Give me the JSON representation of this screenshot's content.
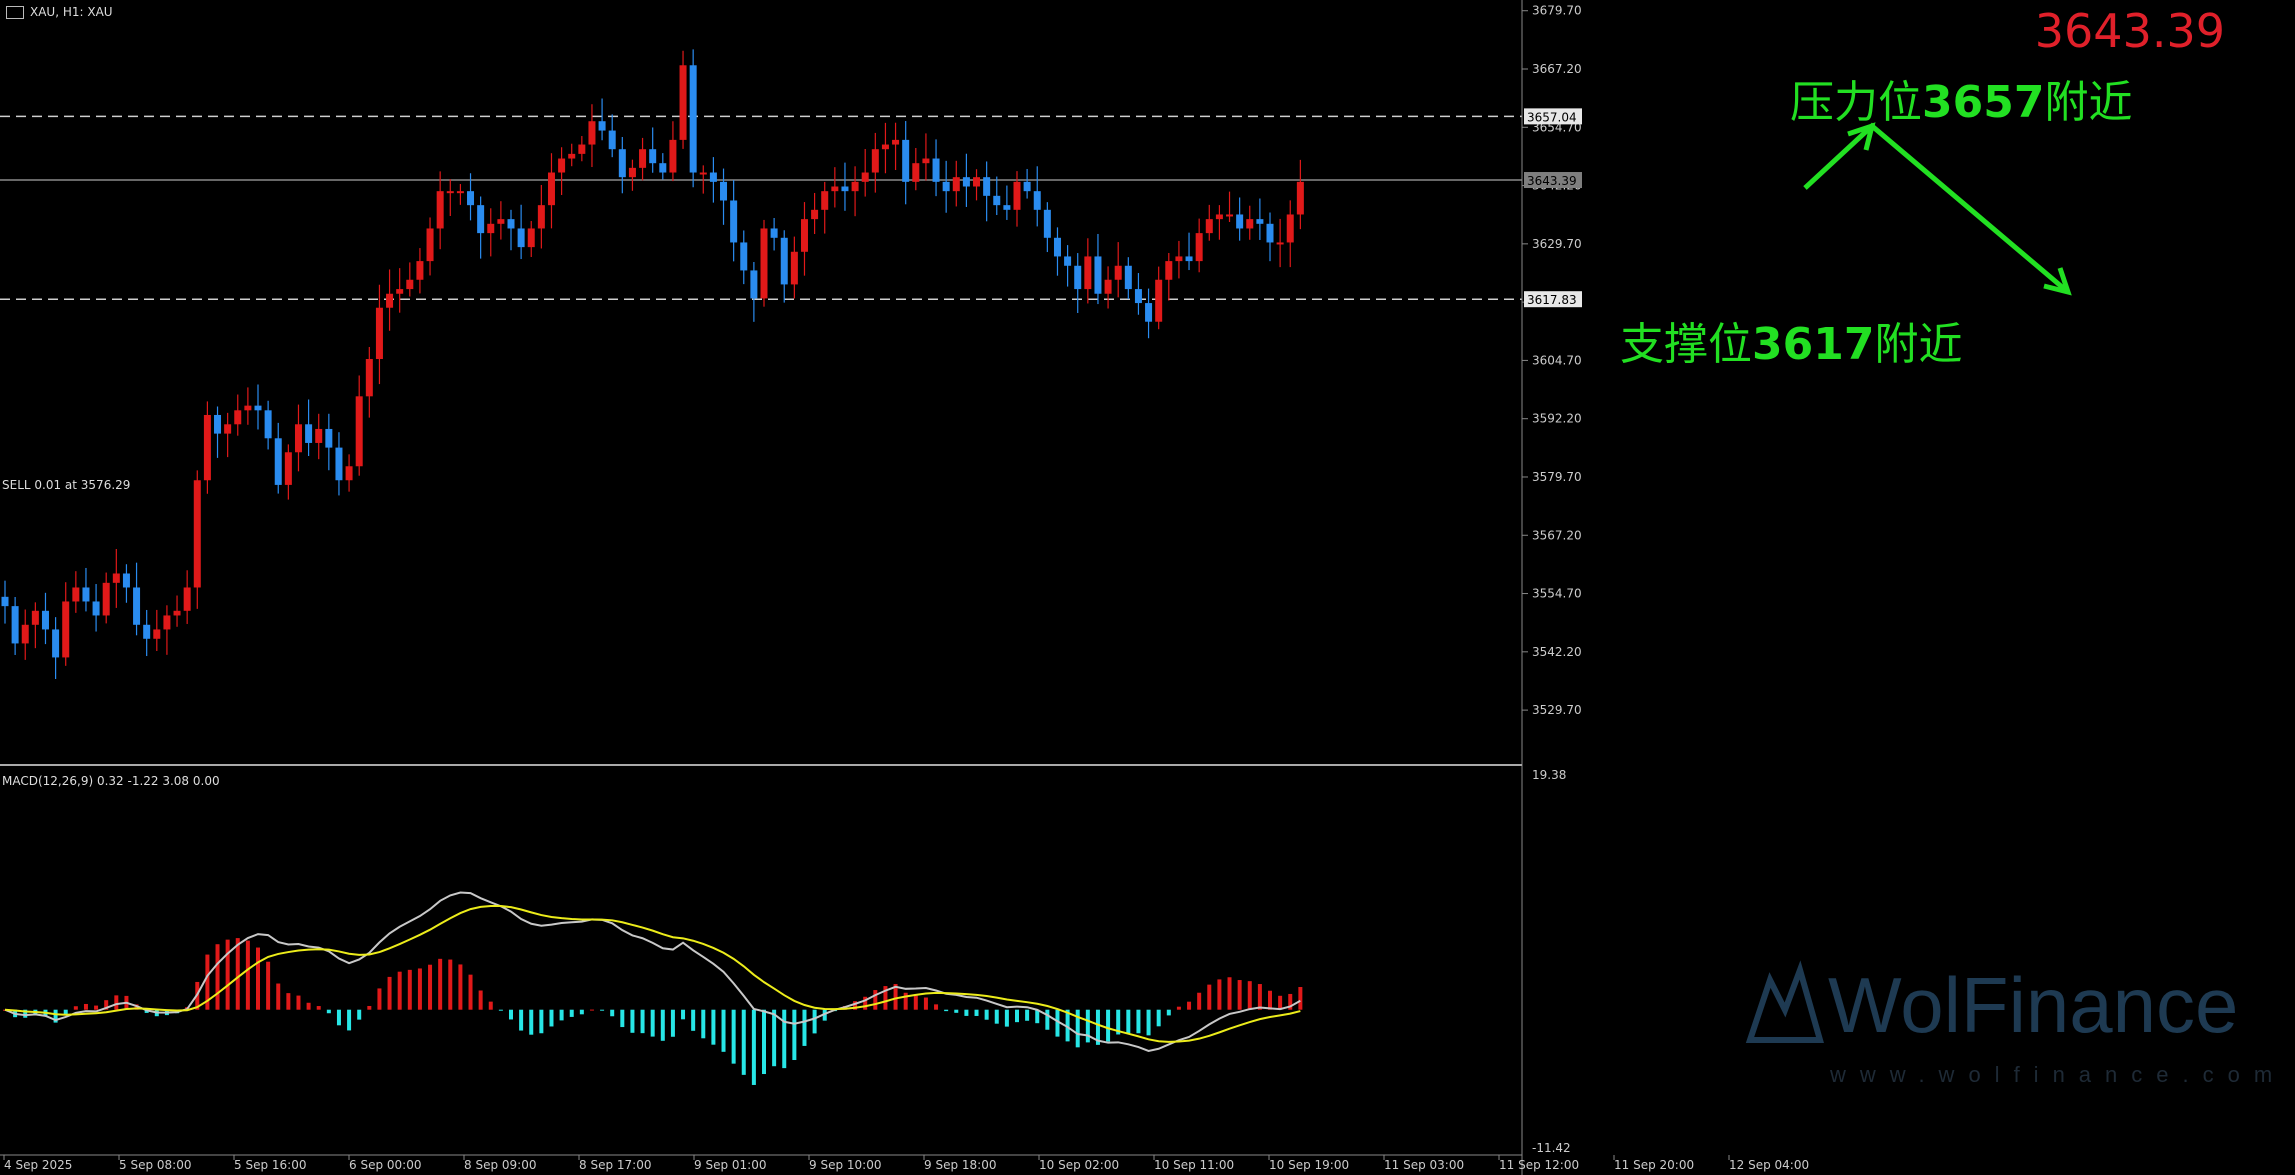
{
  "header": {
    "symbol_text": "XAU, H1: XAU"
  },
  "current_price": "3643.39",
  "order_label": "SELL 0.01 at 3576.29",
  "macd_label": "MACD(12,26,9) 0.32 -1.22 3.08 0.00",
  "annotations": {
    "resistance_prefix": "压力位",
    "resistance_value": "3657",
    "resistance_suffix": "附近",
    "support_prefix": "支撑位",
    "support_value": "3617",
    "support_suffix": "附近"
  },
  "watermark": {
    "name": "WolFinance",
    "url": "www.wolfinance.com"
  },
  "colors": {
    "background": "#000000",
    "bull": "#e11919",
    "bear": "#2a8cf0",
    "macd_up": "#e11919",
    "macd_down": "#27e6e6",
    "macd_line": "#c8c8c8",
    "signal_line": "#ecec1a",
    "annotation": "#22e022",
    "price_label": "#e0202a"
  },
  "chart_data": [
    {
      "type": "candlestick",
      "symbol": "XAU",
      "timeframe": "H1",
      "ylim": [
        3519.0,
        3682.0
      ],
      "y_ticks": [
        "3679.70",
        "3667.20",
        "3654.70",
        "3642.20",
        "3629.70",
        "3617.20",
        "3604.70",
        "3592.20",
        "3579.70",
        "3567.20",
        "3554.70",
        "3542.20",
        "3529.70"
      ],
      "x_tick_labels": [
        "4 Sep 2025",
        "5 Sep 08:00",
        "5 Sep 16:00",
        "6 Sep 00:00",
        "8 Sep 09:00",
        "8 Sep 17:00",
        "9 Sep 01:00",
        "9 Sep 10:00",
        "9 Sep 18:00",
        "10 Sep 02:00",
        "10 Sep 11:00",
        "10 Sep 19:00",
        "11 Sep 03:00",
        "11 Sep 12:00",
        "11 Sep 20:00",
        "12 Sep 04:00"
      ],
      "horizontal_lines": [
        {
          "label": "3657.04",
          "value": 3657.04,
          "style": "dashed"
        },
        {
          "label": "3643.39",
          "value": 3643.39,
          "style": "solid"
        },
        {
          "label": "3617.83",
          "value": 3617.83,
          "style": "dashed"
        }
      ],
      "closes": [
        3552,
        3544,
        3548,
        3551,
        3547,
        3541,
        3553,
        3556,
        3553,
        3550,
        3557,
        3559,
        3556,
        3548,
        3545,
        3547,
        3550,
        3551,
        3556,
        3579,
        3593,
        3589,
        3591,
        3594,
        3595,
        3594,
        3588,
        3578,
        3585,
        3591,
        3587,
        3590,
        3586,
        3579,
        3582,
        3597,
        3605,
        3616,
        3619,
        3620,
        3622,
        3626,
        3633,
        3641,
        3641,
        3641,
        3638,
        3632,
        3634,
        3635,
        3633,
        3629,
        3633,
        3638,
        3645,
        3648,
        3649,
        3651,
        3656,
        3654,
        3650,
        3644,
        3646,
        3650,
        3647,
        3645,
        3652,
        3668,
        3645,
        3645,
        3643,
        3639,
        3630,
        3624,
        3618,
        3633,
        3631,
        3621,
        3628,
        3635,
        3637,
        3641,
        3642,
        3641,
        3643,
        3645,
        3650,
        3651,
        3652,
        3643,
        3647,
        3648,
        3643,
        3641,
        3644,
        3642,
        3644,
        3640,
        3638,
        3637,
        3643,
        3641,
        3637,
        3631,
        3627,
        3625,
        3620,
        3627,
        3619,
        3622,
        3625,
        3620,
        3617,
        3613,
        3622,
        3626,
        3627,
        3626,
        3632,
        3635,
        3636,
        3636,
        3633,
        3635,
        3634,
        3630,
        3630,
        3636,
        3643
      ]
    },
    {
      "type": "bar+line",
      "name": "MACD(12,26,9)",
      "values_text": "0.32 -1.22 3.08 0.00",
      "ylim": [
        -11.42,
        19.38
      ],
      "y_ticks": [
        "19.38",
        "-11.42"
      ]
    }
  ]
}
